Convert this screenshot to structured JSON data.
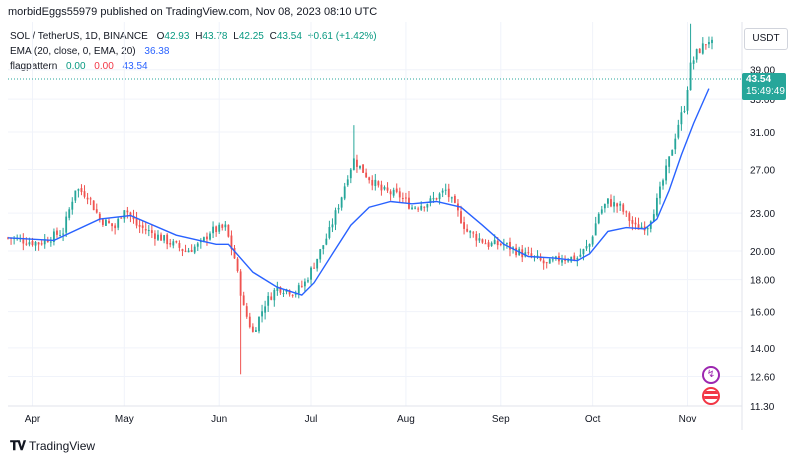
{
  "header": {
    "text": "morbidEggs55979 published on TradingView.com, Nov 08, 2023 08:10 UTC"
  },
  "legend": {
    "symbol": "SOL / TetherUS, 1D, BINANCE",
    "open_k": "O",
    "open": "42.93",
    "high_k": "H",
    "high": "43.78",
    "low_k": "L",
    "low": "42.25",
    "close_k": "C",
    "close": "43.54",
    "change": "+0.61 (+1.42%)",
    "ema_label": "EMA (20, close, 0, EMA, 20)",
    "ema_value": "36.38",
    "fp_label": "flagpattern",
    "fp_v1": "0.00",
    "fp_v2": "0.00",
    "fp_v3": "43.54"
  },
  "currency": "USDT",
  "badge": {
    "price": "43.54",
    "countdown": "15:49:49"
  },
  "footer": {
    "brand": "TradingView"
  },
  "colors": {
    "up": "#26a69a",
    "down": "#ef5350",
    "ema": "#2962ff",
    "grid": "#f0f3fa",
    "axis": "#131722"
  },
  "chart_data": {
    "type": "candlestick",
    "title": "SOL / TetherUS, 1D, BINANCE",
    "y_axis_scale": "log",
    "y_ticks": [
      "11.30",
      "12.60",
      "14.00",
      "16.00",
      "18.00",
      "20.00",
      "23.00",
      "27.00",
      "31.00",
      "35.00",
      "39.00"
    ],
    "ylim": [
      11.3,
      46.5
    ],
    "x_ticks": [
      {
        "label": "Apr",
        "day": 8
      },
      {
        "label": "May",
        "day": 38
      },
      {
        "label": "Jun",
        "day": 69
      },
      {
        "label": "Jul",
        "day": 99
      },
      {
        "label": "Aug",
        "day": 130
      },
      {
        "label": "Sep",
        "day": 161
      },
      {
        "label": "Oct",
        "day": 191
      },
      {
        "label": "Nov",
        "day": 222
      }
    ],
    "x_range_days": [
      0,
      230
    ],
    "last_price": 43.54,
    "series": [
      {
        "name": "SOL / TetherUS",
        "kind": "ohlc",
        "anchors": [
          [
            0,
            21.0
          ],
          [
            10,
            20.6
          ],
          [
            18,
            21.5
          ],
          [
            22,
            25.2
          ],
          [
            26,
            24.6
          ],
          [
            30,
            22.5
          ],
          [
            35,
            21.8
          ],
          [
            38,
            23.5
          ],
          [
            42,
            22.0
          ],
          [
            50,
            21.0
          ],
          [
            58,
            20.0
          ],
          [
            63,
            20.5
          ],
          [
            66,
            21.5
          ],
          [
            71,
            21.8
          ],
          [
            74,
            19.5
          ],
          [
            77,
            16.2
          ],
          [
            80,
            14.8
          ],
          [
            84,
            16.5
          ],
          [
            88,
            17.5
          ],
          [
            94,
            17.2
          ],
          [
            97,
            17.8
          ],
          [
            101,
            19.5
          ],
          [
            105,
            21.5
          ],
          [
            109,
            24.5
          ],
          [
            111,
            26.5
          ],
          [
            113,
            28.0
          ],
          [
            117,
            26.5
          ],
          [
            122,
            25.0
          ],
          [
            128,
            24.5
          ],
          [
            132,
            23.5
          ],
          [
            138,
            24.0
          ],
          [
            143,
            25.0
          ],
          [
            147,
            23.0
          ],
          [
            150,
            21.5
          ],
          [
            157,
            20.5
          ],
          [
            162,
            20.5
          ],
          [
            168,
            19.8
          ],
          [
            172,
            19.5
          ],
          [
            176,
            19.0
          ],
          [
            181,
            19.5
          ],
          [
            186,
            19.5
          ],
          [
            190,
            20.5
          ],
          [
            193,
            23.0
          ],
          [
            196,
            24.0
          ],
          [
            200,
            23.5
          ],
          [
            205,
            21.8
          ],
          [
            209,
            22.0
          ],
          [
            212,
            24.0
          ],
          [
            216,
            28.0
          ],
          [
            219,
            32.0
          ],
          [
            221,
            34.0
          ],
          [
            223,
            39.5
          ],
          [
            225,
            41.5
          ],
          [
            227,
            42.5
          ],
          [
            229,
            43.54
          ]
        ],
        "spikes": [
          {
            "day": 76,
            "low": 12.7
          },
          {
            "day": 113,
            "high": 31.8
          },
          {
            "day": 223,
            "high": 46.2
          }
        ]
      },
      {
        "name": "EMA (20, close, 0, EMA, 20)",
        "kind": "line",
        "points": [
          [
            0,
            21.0
          ],
          [
            15,
            20.8
          ],
          [
            30,
            22.5
          ],
          [
            40,
            22.8
          ],
          [
            55,
            21.2
          ],
          [
            68,
            20.5
          ],
          [
            72,
            20.5
          ],
          [
            80,
            18.5
          ],
          [
            88,
            17.5
          ],
          [
            96,
            17.0
          ],
          [
            100,
            17.8
          ],
          [
            106,
            19.8
          ],
          [
            112,
            22.0
          ],
          [
            118,
            23.5
          ],
          [
            125,
            24.0
          ],
          [
            132,
            23.8
          ],
          [
            140,
            24.0
          ],
          [
            148,
            23.5
          ],
          [
            155,
            22.0
          ],
          [
            162,
            20.5
          ],
          [
            170,
            19.6
          ],
          [
            178,
            19.5
          ],
          [
            186,
            19.3
          ],
          [
            190,
            19.8
          ],
          [
            196,
            21.5
          ],
          [
            202,
            21.8
          ],
          [
            208,
            21.7
          ],
          [
            212,
            22.5
          ],
          [
            216,
            25.0
          ],
          [
            220,
            28.5
          ],
          [
            224,
            32.0
          ],
          [
            229,
            36.38
          ]
        ]
      }
    ]
  }
}
